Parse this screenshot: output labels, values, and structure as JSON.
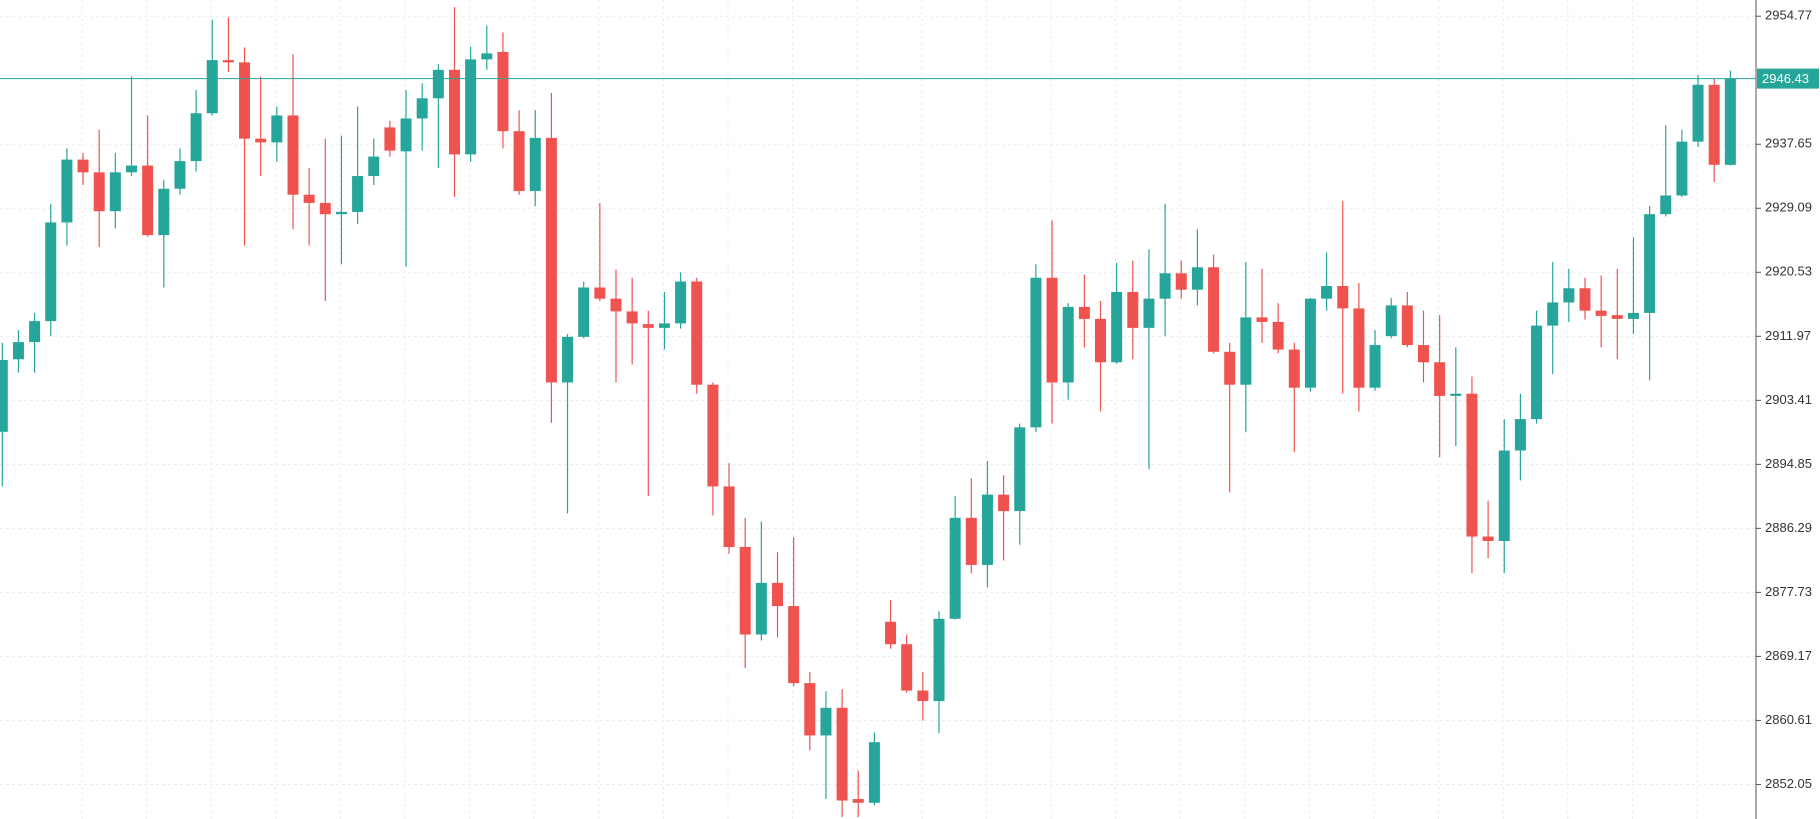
{
  "chart_data": {
    "type": "candlestick",
    "up_color": "#26a69a",
    "down_color": "#ef5350",
    "grid": true,
    "ylim": [
      2847.43,
      2956.94
    ],
    "yticks": [
      2954.77,
      2937.65,
      2929.09,
      2920.53,
      2911.97,
      2903.41,
      2894.85,
      2886.29,
      2877.73,
      2869.17,
      2860.61,
      2852.05
    ],
    "current_price": 2946.43,
    "open": [
      2899.2,
      2908.9,
      2911.2,
      2914.0,
      2927.2,
      2935.6,
      2933.9,
      2928.7,
      2933.9,
      2934.8,
      2925.5,
      2931.7,
      2935.4,
      2941.8,
      2948.9,
      2948.6,
      2938.4,
      2937.9,
      2941.5,
      2930.9,
      2929.8,
      2928.3,
      2928.6,
      2933.4,
      2939.9,
      2936.7,
      2941.1,
      2943.8,
      2947.6,
      2936.3,
      2949.0,
      2950.0,
      2939.4,
      2931.4,
      2938.5,
      2905.8,
      2911.9,
      2918.5,
      2917.0,
      2915.3,
      2913.6,
      2913.1,
      2913.7,
      2919.3,
      2905.5,
      2891.9,
      2883.8,
      2872.1,
      2879.0,
      2875.9,
      2865.6,
      2858.6,
      2862.3,
      2850.1,
      2849.6,
      2873.8,
      2870.8,
      2864.6,
      2863.2,
      2874.2,
      2887.7,
      2881.4,
      2890.8,
      2888.6,
      2899.8,
      2919.8,
      2905.8,
      2915.9,
      2914.3,
      2908.5,
      2917.9,
      2913.1,
      2917.0,
      2920.4,
      2918.2,
      2921.2,
      2909.9,
      2905.5,
      2914.5,
      2913.9,
      2910.2,
      2905.1,
      2917.0,
      2918.7,
      2915.7,
      2905.1,
      2912.0,
      2916.1,
      2910.8,
      2908.5,
      2904.0,
      2904.3,
      2885.2,
      2884.6,
      2896.7,
      2900.9,
      2913.4,
      2916.5,
      2918.4,
      2915.4,
      2914.8,
      2914.3,
      2915.1,
      2928.3,
      2930.8,
      2938.0,
      2945.6,
      2934.9
    ],
    "high": [
      2911.1,
      2912.8,
      2915.1,
      2929.7,
      2937.1,
      2936.5,
      2939.6,
      2936.5,
      2946.7,
      2941.5,
      2932.9,
      2937.1,
      2944.9,
      2954.3,
      2954.6,
      2950.6,
      2946.7,
      2942.7,
      2949.7,
      2934.5,
      2938.4,
      2938.8,
      2942.7,
      2938.4,
      2940.8,
      2944.9,
      2945.8,
      2948.4,
      2956.0,
      2950.7,
      2953.5,
      2952.6,
      2942.2,
      2942.2,
      2944.5,
      2912.3,
      2919.3,
      2929.8,
      2920.9,
      2919.8,
      2915.4,
      2917.9,
      2920.5,
      2919.8,
      2905.8,
      2895.0,
      2887.7,
      2887.2,
      2883.1,
      2885.1,
      2867.1,
      2864.5,
      2864.8,
      2853.9,
      2859.0,
      2876.7,
      2872.1,
      2867.1,
      2875.2,
      2890.6,
      2893.0,
      2895.3,
      2893.4,
      2900.3,
      2921.6,
      2927.5,
      2916.4,
      2920.2,
      2916.7,
      2921.8,
      2922.1,
      2923.6,
      2929.7,
      2922.1,
      2926.3,
      2922.9,
      2911.1,
      2921.9,
      2921.0,
      2916.4,
      2911.1,
      2917.1,
      2923.2,
      2930.1,
      2919.1,
      2912.8,
      2917.1,
      2917.9,
      2915.4,
      2914.8,
      2910.5,
      2906.6,
      2890.0,
      2900.9,
      2904.3,
      2915.4,
      2921.9,
      2921.0,
      2919.8,
      2920.1,
      2921.0,
      2925.2,
      2929.4,
      2940.2,
      2939.6,
      2946.9,
      2946.4,
      2947.5
    ],
    "low": [
      2891.9,
      2907.1,
      2907.1,
      2912.0,
      2924.1,
      2932.2,
      2923.9,
      2926.4,
      2933.4,
      2925.3,
      2918.5,
      2930.9,
      2934.0,
      2941.5,
      2947.3,
      2924.1,
      2933.4,
      2935.3,
      2926.3,
      2924.1,
      2916.7,
      2921.6,
      2927.0,
      2932.2,
      2936.0,
      2921.3,
      2936.8,
      2934.5,
      2930.6,
      2935.3,
      2947.6,
      2937.1,
      2930.9,
      2929.4,
      2900.4,
      2888.3,
      2911.7,
      2916.7,
      2905.8,
      2908.2,
      2890.6,
      2910.2,
      2913.0,
      2904.3,
      2888.0,
      2882.9,
      2867.6,
      2871.3,
      2871.7,
      2865.2,
      2856.6,
      2850.1,
      2847.7,
      2847.7,
      2849.3,
      2870.2,
      2864.3,
      2860.6,
      2858.9,
      2874.1,
      2880.3,
      2878.4,
      2882.0,
      2884.1,
      2899.2,
      2900.3,
      2903.5,
      2910.5,
      2901.9,
      2908.3,
      2908.9,
      2894.2,
      2912.0,
      2917.0,
      2916.1,
      2909.7,
      2891.1,
      2899.2,
      2911.1,
      2909.7,
      2896.5,
      2904.6,
      2915.4,
      2904.3,
      2901.9,
      2904.7,
      2911.7,
      2910.5,
      2905.8,
      2895.8,
      2897.3,
      2880.3,
      2882.3,
      2880.3,
      2892.7,
      2900.3,
      2906.9,
      2913.9,
      2914.2,
      2910.5,
      2908.9,
      2912.3,
      2906.1,
      2928.0,
      2930.6,
      2937.3,
      2932.6,
      2934.8
    ],
    "close": [
      2908.8,
      2911.2,
      2914.0,
      2927.2,
      2935.6,
      2933.9,
      2928.7,
      2933.9,
      2934.8,
      2925.5,
      2931.7,
      2935.4,
      2941.8,
      2948.9,
      2948.6,
      2938.4,
      2937.9,
      2941.5,
      2930.9,
      2929.8,
      2928.3,
      2928.6,
      2933.4,
      2936.0,
      2936.8,
      2941.1,
      2943.8,
      2947.6,
      2936.3,
      2949.0,
      2949.8,
      2939.4,
      2931.4,
      2938.5,
      2905.8,
      2911.9,
      2918.5,
      2917.0,
      2915.3,
      2913.7,
      2913.1,
      2913.7,
      2919.3,
      2905.5,
      2891.9,
      2883.8,
      2872.1,
      2879.0,
      2875.9,
      2865.6,
      2858.6,
      2862.3,
      2849.9,
      2849.6,
      2857.7,
      2870.8,
      2864.6,
      2863.2,
      2874.2,
      2887.7,
      2881.4,
      2890.8,
      2888.6,
      2899.8,
      2919.8,
      2905.8,
      2915.9,
      2914.3,
      2908.5,
      2917.9,
      2913.1,
      2917.0,
      2920.4,
      2918.2,
      2921.2,
      2909.9,
      2905.5,
      2914.5,
      2913.9,
      2910.2,
      2905.1,
      2917.0,
      2918.7,
      2915.7,
      2905.1,
      2910.8,
      2916.1,
      2910.8,
      2908.5,
      2904.0,
      2904.3,
      2885.2,
      2884.6,
      2896.7,
      2900.9,
      2913.4,
      2916.5,
      2918.4,
      2915.4,
      2914.7,
      2914.3,
      2915.1,
      2928.3,
      2930.8,
      2938.0,
      2945.6,
      2934.9,
      2946.43
    ]
  }
}
